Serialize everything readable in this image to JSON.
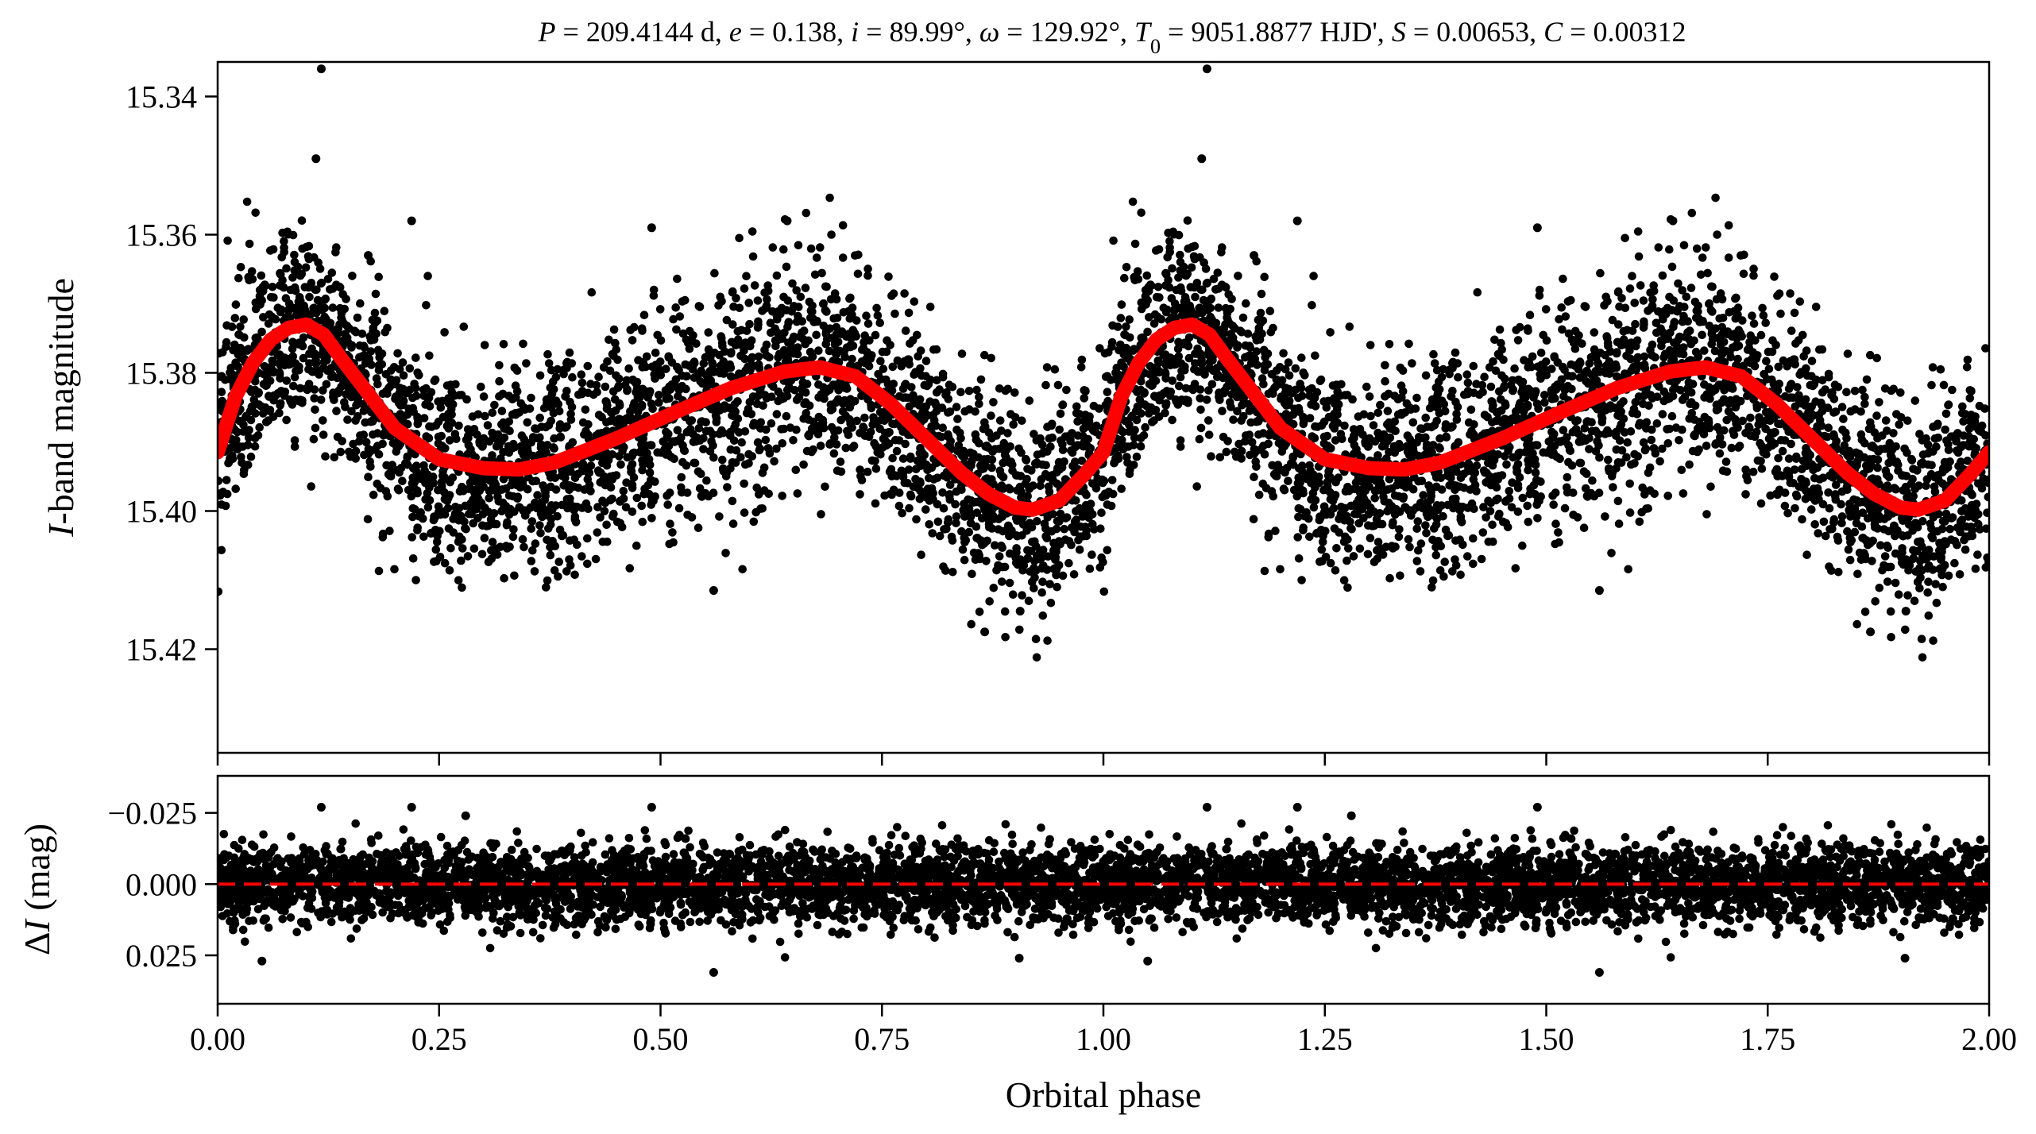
{
  "chart_data": [
    {
      "type": "scatter",
      "panel": "light-curve",
      "title": "P = 209.4144 d, e = 0.138, i = 89.99°, ω = 129.92°, T0 = 9051.8877 HJD', S = 0.00653, C = 0.00312",
      "title_parts": {
        "P": "P",
        "P_value": " = 209.4144 d, ",
        "e": "e",
        "e_value": " = 0.138, ",
        "i": "i",
        "i_value": " = 89.99°, ",
        "omega": "ω",
        "omega_value": " = 129.92°, ",
        "T": "T",
        "T_sub": "0",
        "T_value": " = 9051.8877 HJD', ",
        "S": "S",
        "S_value": " = 0.00653, ",
        "C": "C",
        "C_value": " = 0.00312"
      },
      "ylabel_italic": "I",
      "ylabel_rest": "-band magnitude",
      "ylim": [
        15.435,
        15.335
      ],
      "y_inverted": true,
      "yticks": [
        "15.34",
        "15.36",
        "15.38",
        "15.40",
        "15.42"
      ],
      "ytick_values": [
        15.34,
        15.36,
        15.38,
        15.4,
        15.42
      ],
      "grid": false,
      "scatter_color": "#000000",
      "model_color": "#ff0000",
      "model_curve": {
        "x": [
          0.0,
          0.02,
          0.04,
          0.06,
          0.08,
          0.1,
          0.12,
          0.14,
          0.17,
          0.2,
          0.25,
          0.3,
          0.34,
          0.38,
          0.45,
          0.52,
          0.58,
          0.64,
          0.68,
          0.72,
          0.76,
          0.8,
          0.84,
          0.87,
          0.9,
          0.92,
          0.95,
          0.98,
          1.0,
          1.02,
          1.04,
          1.06,
          1.08,
          1.1,
          1.12,
          1.14,
          1.17,
          1.2,
          1.25,
          1.3,
          1.34,
          1.38,
          1.45,
          1.52,
          1.58,
          1.64,
          1.68,
          1.72,
          1.76,
          1.8,
          1.84,
          1.87,
          1.9,
          1.92,
          1.95,
          1.98,
          2.0
        ],
        "y": [
          15.3915,
          15.3835,
          15.3785,
          15.3752,
          15.3735,
          15.373,
          15.3745,
          15.378,
          15.383,
          15.388,
          15.3925,
          15.3938,
          15.394,
          15.393,
          15.3895,
          15.3855,
          15.3822,
          15.3798,
          15.3792,
          15.3805,
          15.3845,
          15.3895,
          15.3945,
          15.3975,
          15.3995,
          15.3998,
          15.3985,
          15.3945,
          15.3915,
          15.3835,
          15.3785,
          15.3752,
          15.3735,
          15.373,
          15.3745,
          15.378,
          15.383,
          15.388,
          15.3925,
          15.3938,
          15.394,
          15.393,
          15.3895,
          15.3855,
          15.3822,
          15.3798,
          15.3792,
          15.3805,
          15.3845,
          15.3895,
          15.3945,
          15.3975,
          15.3995,
          15.3998,
          15.3985,
          15.3945,
          15.3915
        ]
      },
      "scatter_scale_mag": 0.0075,
      "outlier_points": {
        "x": [
          0.117,
          1.117,
          0.111,
          1.111,
          0.219,
          1.219,
          0.49,
          1.49,
          0.643,
          1.643,
          0.906,
          1.906,
          0.866,
          1.866,
          0.56,
          1.56,
          0.17,
          1.17
        ],
        "y": [
          15.336,
          15.336,
          15.349,
          15.349,
          15.358,
          15.358,
          15.359,
          15.359,
          15.358,
          15.358,
          15.4145,
          15.4145,
          15.4175,
          15.4175,
          15.4115,
          15.4115,
          15.363,
          15.363
        ]
      }
    },
    {
      "type": "scatter",
      "panel": "residuals",
      "xlabel": "Orbital phase",
      "ylabel_prefix": "Δ",
      "ylabel_italic": "I",
      "ylabel_rest": " (mag)",
      "xlim": [
        0.0,
        2.0
      ],
      "xticks": [
        "0.00",
        "0.25",
        "0.50",
        "0.75",
        "1.00",
        "1.25",
        "1.50",
        "1.75",
        "2.00"
      ],
      "xtick_values": [
        0.0,
        0.25,
        0.5,
        0.75,
        1.0,
        1.25,
        1.5,
        1.75,
        2.0
      ],
      "ylim": [
        0.042,
        -0.038
      ],
      "y_inverted": true,
      "yticks": [
        "−0.025",
        "0.000",
        "0.025"
      ],
      "ytick_values": [
        -0.025,
        0.0,
        0.025
      ],
      "zero_line": {
        "y": 0.0,
        "color": "#ff0000",
        "style": "dashed"
      },
      "scatter_color": "#000000",
      "residual_scale_mag": 0.0068,
      "outlier_points": {
        "x": [
          0.117,
          1.117,
          0.219,
          1.219,
          0.49,
          1.49,
          0.56,
          1.56,
          0.05,
          1.05,
          0.28,
          1.28,
          0.905,
          1.905
        ],
        "y": [
          -0.027,
          -0.027,
          -0.027,
          -0.027,
          -0.027,
          -0.027,
          0.031,
          0.031,
          0.027,
          0.027,
          -0.024,
          -0.024,
          0.026,
          0.026
        ]
      }
    }
  ]
}
